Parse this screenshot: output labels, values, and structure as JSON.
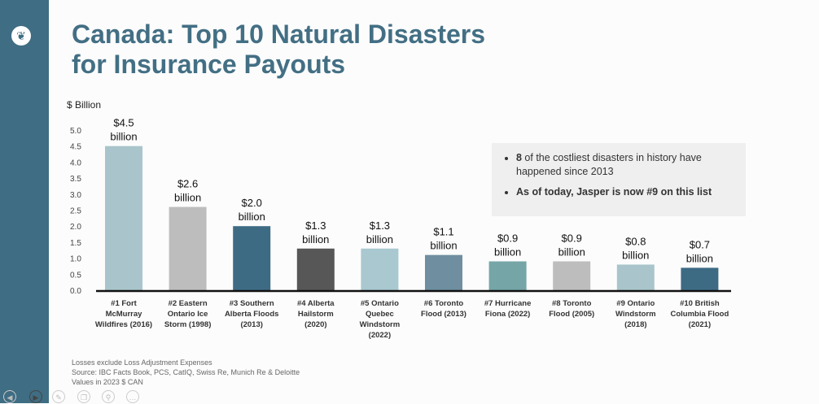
{
  "title_line1": "Canada: Top 10 Natural Disasters",
  "title_line2": "for Insurance Payouts",
  "callout": {
    "bullet1_bold": "8",
    "bullet1_rest": " of the costliest disasters in history have happened since 2013",
    "bullet2": "As of today, Jasper is now #9 on this list"
  },
  "notes": [
    "Losses exclude Loss Adjustment Expenses",
    "Source: IBC  Facts Book, PCS,  CatIQ, Swiss Re, Munich Re & Deloitte",
    "Values in 2023 $ CAN"
  ],
  "toolbar": [
    "prev-icon",
    "next-icon",
    "pen-icon",
    "copy-icon",
    "zoom-icon",
    "more-icon"
  ],
  "chart_data": {
    "type": "bar",
    "ylabel": "$ Billion",
    "ylim": [
      0,
      5.0
    ],
    "yticks": [
      "0.0",
      "0.5",
      "1.0",
      "1.5",
      "2.0",
      "2.5",
      "3.0",
      "3.5",
      "4.0",
      "4.5",
      "5.0"
    ],
    "grid": false,
    "categories": [
      [
        "#1 Fort",
        "McMurray",
        "Wildfires (2016)"
      ],
      [
        "#2 Eastern",
        "Ontario Ice",
        "Storm (1998)"
      ],
      [
        "#3 Southern",
        "Alberta Floods",
        "(2013)"
      ],
      [
        "#4 Alberta",
        "Hailstorm",
        "(2020)"
      ],
      [
        "#5 Ontario",
        "Quebec",
        "Windstorm",
        "(2022)"
      ],
      [
        "#6 Toronto",
        "Flood (2013)"
      ],
      [
        "#7 Hurricane",
        "Fiona (2022)"
      ],
      [
        "#8 Toronto",
        "Flood (2005)"
      ],
      [
        "#9 Ontario",
        "Windstorm",
        "(2018)"
      ],
      [
        "#10 British",
        "Columbia Flood",
        "(2021)"
      ]
    ],
    "values": [
      4.5,
      2.6,
      2.0,
      1.3,
      1.3,
      1.1,
      0.9,
      0.9,
      0.8,
      0.7
    ],
    "data_labels": [
      [
        "$4.5",
        "billion"
      ],
      [
        "$2.6",
        "billion"
      ],
      [
        "$2.0",
        "billion"
      ],
      [
        "$1.3",
        "billion"
      ],
      [
        "$1.3",
        "billion"
      ],
      [
        "$1.1",
        "billion"
      ],
      [
        "$0.9",
        "billion"
      ],
      [
        "$0.9",
        "billion"
      ],
      [
        "$0.8",
        "billion"
      ],
      [
        "$0.7",
        "billion"
      ]
    ],
    "colors": [
      "#a9c5cb",
      "#bdbdbd",
      "#3e6b84",
      "#575757",
      "#a9c8cf",
      "#6f8fa0",
      "#75a5a7",
      "#bdbdbd",
      "#a9c5cb",
      "#3e6b84"
    ]
  }
}
